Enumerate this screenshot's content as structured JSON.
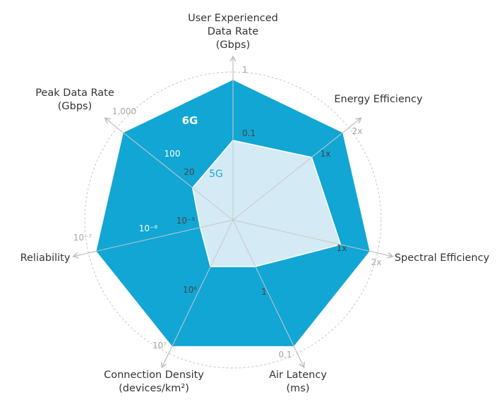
{
  "colors": {
    "series_6g": "#12a6d4",
    "series_5g": "#d4eaf5",
    "grid": "#c4c4c4",
    "spoke": "#c8c8c8",
    "arrow": "#bdbdbd"
  },
  "chart_data": {
    "type": "radar",
    "title": "",
    "axes": [
      {
        "id": "uedr",
        "lines": [
          "User Experienced",
          "Data Rate",
          "(Gbps)"
        ],
        "outer": "1",
        "tick_6g": "1",
        "tick_5g": "0.1"
      },
      {
        "id": "ee",
        "lines": [
          "Energy Efficiency"
        ],
        "outer": "2x",
        "tick_6g": "2x",
        "tick_5g": "1x"
      },
      {
        "id": "se",
        "lines": [
          "Spectral Efficiency"
        ],
        "outer": "2x",
        "tick_6g": "2x",
        "tick_5g": "1x"
      },
      {
        "id": "al",
        "lines": [
          "Air Latency",
          "(ms)"
        ],
        "outer": "0.1",
        "tick_6g": "0.1",
        "tick_5g": "1"
      },
      {
        "id": "cd",
        "lines": [
          "Connection Density",
          "(devices/km²)"
        ],
        "outer": "10⁷",
        "tick_6g": "10⁷",
        "tick_5g": "10⁶"
      },
      {
        "id": "rel",
        "lines": [
          "Reliability"
        ],
        "outer": "10⁻⁷",
        "tick_6g": "10⁻⁶",
        "tick_5g": "10⁻⁵"
      },
      {
        "id": "pdr",
        "lines": [
          "Peak Data Rate",
          "(Gbps)"
        ],
        "outer": "1,000",
        "tick_6g": "100",
        "tick_5g": "20"
      }
    ],
    "series": [
      {
        "name": "6G",
        "values": [
          1.0,
          1.0,
          1.0,
          1.0,
          1.0,
          1.0,
          1.0
        ]
      },
      {
        "name": "5G",
        "values": [
          0.57,
          0.72,
          0.79,
          0.37,
          0.37,
          0.24,
          0.37
        ]
      }
    ]
  }
}
